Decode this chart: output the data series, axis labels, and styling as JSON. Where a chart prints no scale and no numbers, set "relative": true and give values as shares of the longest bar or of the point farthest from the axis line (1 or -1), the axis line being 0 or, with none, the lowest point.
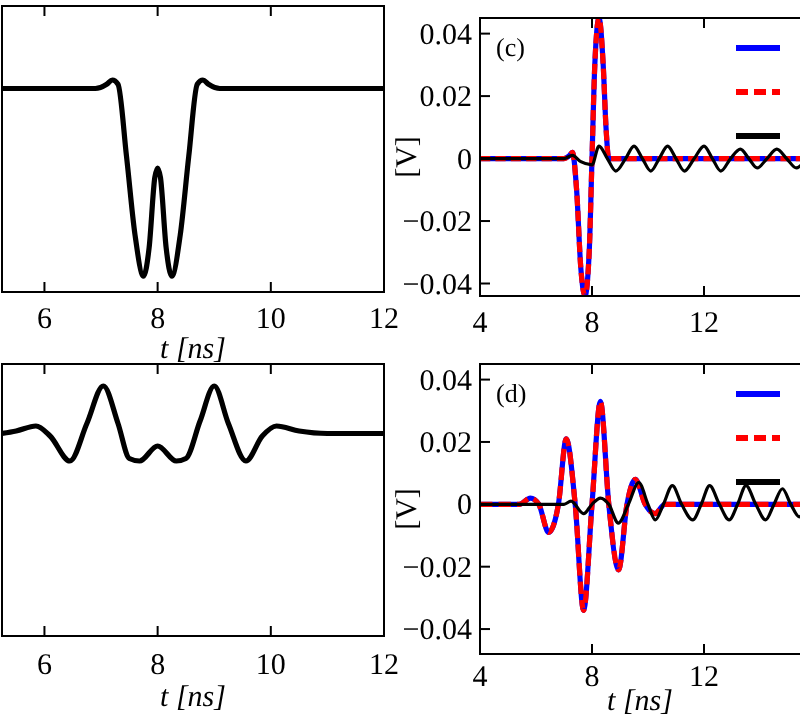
{
  "chart_data": [
    {
      "type": "line",
      "relative": true,
      "xlabel": "t [ns]",
      "xlim": [
        5.25,
        12
      ],
      "xticks": [
        6,
        8,
        10,
        12
      ],
      "series": [
        {
          "color": "#000000",
          "x": [
            5.25,
            6.9,
            7.1,
            7.2,
            7.3,
            7.45,
            7.6,
            7.75,
            7.85,
            7.95,
            8.0,
            8.05,
            8.15,
            8.25,
            8.4,
            8.55,
            8.7,
            8.8,
            8.9,
            9.1,
            12
          ],
          "values": [
            0.96,
            0.96,
            0.98,
            1.0,
            0.98,
            0.64,
            0.27,
            0.075,
            0.21,
            0.54,
            0.585,
            0.54,
            0.21,
            0.075,
            0.27,
            0.64,
            0.98,
            1.0,
            0.98,
            0.96,
            0.96
          ]
        }
      ]
    },
    {
      "type": "line",
      "ylabel": "[V]",
      "xlim": [
        4,
        16
      ],
      "xticks": [
        4,
        8,
        12
      ],
      "ylim": [
        -0.044,
        0.045
      ],
      "yticks": [
        -0.04,
        -0.02,
        0,
        0.02,
        0.04
      ],
      "annotations": [
        "(c)"
      ],
      "series": [
        {
          "color": "#0000ff",
          "line_style": "solid",
          "x": [
            4,
            7.0,
            7.2,
            7.3,
            7.45,
            7.6,
            7.75,
            7.9,
            8.0,
            8.1,
            8.25,
            8.4,
            8.5,
            8.6,
            15.65
          ],
          "values": [
            0,
            0,
            0.001,
            0.002,
            -0.01,
            -0.035,
            -0.044,
            -0.03,
            0,
            0.03,
            0.045,
            0.03,
            0.01,
            0,
            0
          ]
        },
        {
          "color": "#ff0000",
          "line_style": "dashed",
          "x": [
            4,
            7.0,
            7.2,
            7.3,
            7.45,
            7.6,
            7.75,
            7.9,
            8.0,
            8.1,
            8.25,
            8.4,
            8.5,
            8.6,
            15.65
          ],
          "values": [
            0,
            0,
            0.001,
            0.002,
            -0.01,
            -0.035,
            -0.044,
            -0.03,
            0,
            0.03,
            0.045,
            0.03,
            0.01,
            0,
            0
          ]
        },
        {
          "color": "#000000",
          "line_style": "solid",
          "x": [
            4,
            7.0,
            7.3,
            7.6,
            8.0,
            8.25,
            8.55,
            8.85,
            9.2,
            9.5,
            9.8,
            10.1,
            10.4,
            10.7,
            11.0,
            11.3,
            11.65,
            12.0,
            12.3,
            12.6,
            12.95,
            13.3,
            13.6,
            13.9,
            14.25,
            14.6,
            14.95,
            15.3,
            15.65
          ],
          "values": [
            0,
            0,
            0.001,
            -0.001,
            -0.002,
            0.004,
            0,
            -0.004,
            0,
            0.004,
            0,
            -0.004,
            0,
            0.004,
            0,
            -0.004,
            0,
            0.004,
            0,
            -0.004,
            0,
            0.003,
            0,
            -0.003,
            0,
            0.003,
            0,
            -0.003,
            0
          ]
        }
      ]
    },
    {
      "type": "line",
      "relative": true,
      "xlabel": "t [ns]",
      "xlim": [
        5.25,
        12
      ],
      "xticks": [
        6,
        8,
        10,
        12
      ],
      "series": [
        {
          "color": "#000000",
          "x": [
            5.25,
            5.5,
            5.85,
            6.1,
            6.45,
            6.75,
            7.04,
            7.3,
            7.5,
            7.68,
            8.0,
            8.33,
            8.5,
            8.75,
            9.0,
            9.25,
            9.56,
            9.85,
            10.1,
            10.5,
            11,
            12
          ],
          "values": [
            0.81,
            0.82,
            0.84,
            0.8,
            0.7,
            0.85,
            1.0,
            0.85,
            0.71,
            0.7,
            0.76,
            0.7,
            0.71,
            0.86,
            1.0,
            0.85,
            0.7,
            0.8,
            0.84,
            0.82,
            0.81,
            0.81
          ]
        }
      ]
    },
    {
      "type": "line",
      "ylabel": "[V]",
      "xlabel": "t [ns]",
      "xlim": [
        4,
        16
      ],
      "xticks": [
        4,
        8,
        12
      ],
      "ylim": [
        -0.048,
        0.045
      ],
      "yticks": [
        -0.04,
        -0.02,
        0,
        0.02,
        0.04
      ],
      "annotations": [
        "(d)"
      ],
      "series": [
        {
          "color": "#0000ff",
          "line_style": "solid",
          "x": [
            4,
            5.4,
            5.8,
            6.1,
            6.45,
            6.8,
            7.08,
            7.4,
            7.7,
            8.0,
            8.3,
            8.6,
            8.95,
            9.25,
            9.55,
            9.9,
            10.25,
            10.6,
            15.65
          ],
          "values": [
            0,
            0,
            0.002,
            0,
            -0.009,
            0,
            0.021,
            0,
            -0.034,
            0,
            0.033,
            0,
            -0.021,
            0,
            0.008,
            0,
            -0.003,
            0,
            0
          ]
        },
        {
          "color": "#ff0000",
          "line_style": "dashed",
          "x": [
            4,
            5.4,
            5.8,
            6.1,
            6.45,
            6.8,
            7.08,
            7.4,
            7.7,
            8.0,
            8.3,
            8.6,
            8.95,
            9.25,
            9.55,
            9.9,
            10.25,
            10.6,
            15.65
          ],
          "values": [
            0,
            0,
            0.002,
            0,
            -0.009,
            0,
            0.021,
            0,
            -0.034,
            0,
            0.033,
            0,
            -0.021,
            0,
            0.008,
            0,
            -0.003,
            0,
            0
          ]
        },
        {
          "color": "#000000",
          "line_style": "solid",
          "x": [
            4,
            7.0,
            7.25,
            7.7,
            8.0,
            8.3,
            8.6,
            8.94,
            9.3,
            9.67,
            10.0,
            10.26,
            10.55,
            10.87,
            11.2,
            11.6,
            11.9,
            12.2,
            12.55,
            12.9,
            13.2,
            13.5,
            13.85,
            14.2,
            14.5,
            14.8,
            15.1,
            15.4,
            15.65
          ],
          "values": [
            0,
            0,
            0.001,
            -0.003,
            0,
            0.002,
            0,
            -0.006,
            0,
            0.007,
            0,
            -0.005,
            0,
            0.006,
            0,
            -0.005,
            0,
            0.006,
            0,
            -0.005,
            0,
            0.006,
            0,
            -0.005,
            0,
            0.005,
            0,
            -0.004,
            0
          ]
        }
      ]
    }
  ]
}
